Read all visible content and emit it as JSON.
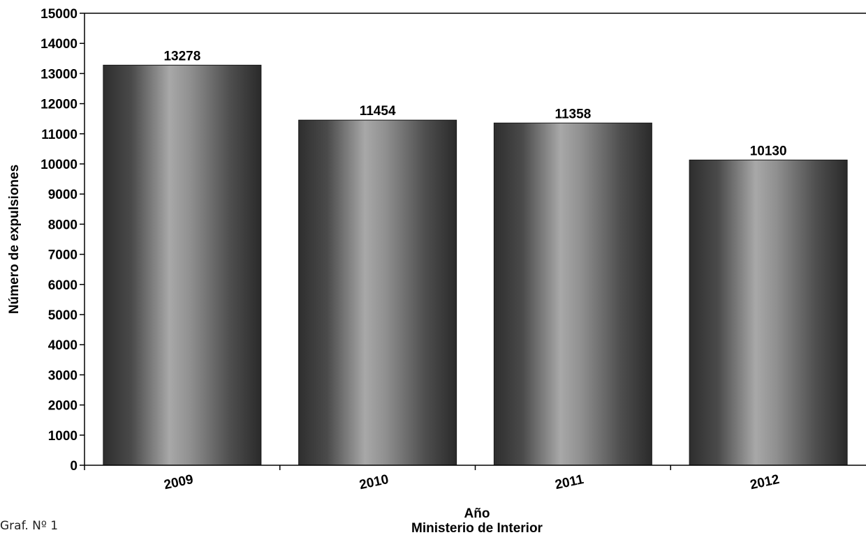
{
  "chart_data": {
    "type": "bar",
    "categories": [
      "2009",
      "2010",
      "2011",
      "2012"
    ],
    "values": [
      13278,
      11454,
      11358,
      10130
    ],
    "data_labels": [
      "13278",
      "11454",
      "11358",
      "10130"
    ],
    "xlabel": "Año",
    "source": "Ministerio de Interior",
    "ylabel": "Número de expulsiones",
    "ylim": [
      0,
      15000
    ],
    "yticks": [
      "0",
      "1000",
      "2000",
      "3000",
      "4000",
      "5000",
      "6000",
      "7000",
      "8000",
      "9000",
      "10000",
      "11000",
      "12000",
      "13000",
      "14000",
      "15000"
    ],
    "grid": false,
    "legend": "none",
    "bar_style": "cylindrical grey gradient",
    "colors": {
      "bar_dark": "#2e2e2e",
      "bar_light": "#a8a8a8",
      "axis": "#000000"
    }
  },
  "caption": "Graf. Nº 1"
}
